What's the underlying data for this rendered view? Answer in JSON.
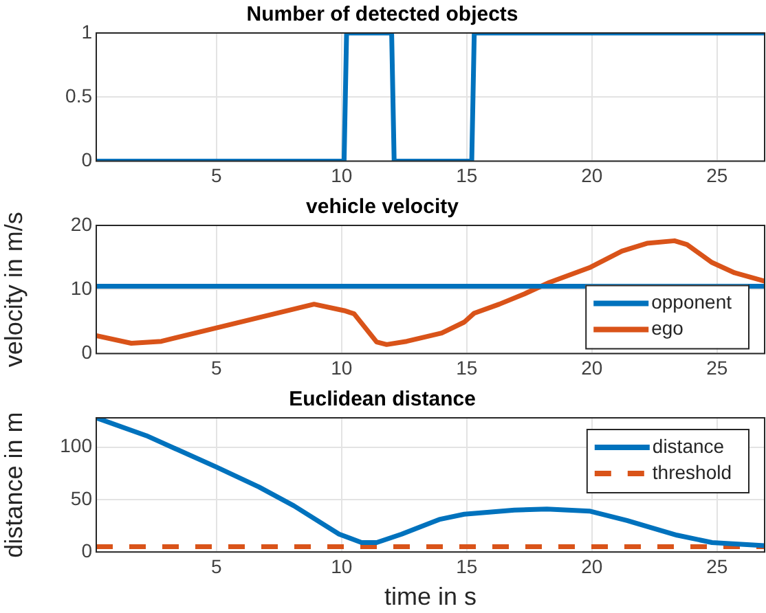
{
  "chart_data": [
    {
      "type": "line",
      "title": "Number of detected objects",
      "xlim": [
        0.2,
        26.9
      ],
      "xticks": [
        5,
        10,
        15,
        20,
        25
      ],
      "ylim": [
        0,
        1
      ],
      "yticks": [
        0,
        0.5,
        1
      ],
      "grid": true,
      "series": [
        {
          "color": "#0072bd",
          "x": [
            0.2,
            10.1,
            10.2,
            12.0,
            12.1,
            15.2,
            15.3,
            26.9
          ],
          "values": [
            0,
            0,
            1,
            1,
            0,
            0,
            1,
            1
          ]
        }
      ]
    },
    {
      "type": "line",
      "title": "vehicle velocity",
      "ylabel": "velocity in m/s",
      "xlim": [
        0.2,
        26.9
      ],
      "xticks": [
        5,
        10,
        15,
        20,
        25
      ],
      "ylim": [
        0,
        20
      ],
      "yticks": [
        0,
        10,
        20
      ],
      "grid": true,
      "legend": "bottom right",
      "series": [
        {
          "name": "opponent",
          "color": "#0072bd",
          "x": [
            0.2,
            26.9
          ],
          "values": [
            10.5,
            10.5
          ]
        },
        {
          "name": "ego",
          "color": "#d95319",
          "x": [
            0.2,
            1.6,
            2.8,
            5,
            8.9,
            10.1,
            10.5,
            11.4,
            11.8,
            12.6,
            14,
            14.9,
            15.3,
            16.3,
            17.3,
            18.3,
            19.9,
            21.2,
            22.2,
            23.3,
            23.8,
            24.8,
            25.7,
            26.9
          ],
          "values": [
            2.8,
            1.6,
            1.9,
            4.0,
            7.7,
            6.7,
            6.2,
            1.8,
            1.4,
            1.9,
            3.2,
            4.9,
            6.3,
            7.7,
            9.3,
            11.1,
            13.4,
            16.0,
            17.2,
            17.6,
            17.0,
            14.2,
            12.6,
            11.3
          ]
        }
      ]
    },
    {
      "type": "line",
      "title": "Euclidean distance",
      "xlabel": "time in s",
      "ylabel": "distance in m",
      "xlim": [
        0.2,
        26.9
      ],
      "xticks": [
        5,
        10,
        15,
        20,
        25
      ],
      "ylim": [
        0,
        128
      ],
      "yticks": [
        0,
        50,
        100
      ],
      "grid": true,
      "legend": "top right",
      "series": [
        {
          "name": "distance",
          "color": "#0072bd",
          "x": [
            0.2,
            2.2,
            5,
            6.7,
            8.1,
            9.9,
            10.8,
            11.4,
            12.4,
            13.9,
            14.9,
            16.9,
            18.2,
            19.9,
            21.4,
            23.4,
            24.8,
            26.9
          ],
          "values": [
            128,
            111,
            81,
            62,
            44,
            17,
            9,
            9,
            17,
            31,
            36,
            40,
            41,
            39,
            30,
            16,
            9,
            6
          ]
        },
        {
          "name": "threshold",
          "color": "#d95319",
          "line_style": "dashed",
          "x": [
            0.2,
            26.9
          ],
          "values": [
            5,
            5
          ]
        }
      ]
    }
  ]
}
